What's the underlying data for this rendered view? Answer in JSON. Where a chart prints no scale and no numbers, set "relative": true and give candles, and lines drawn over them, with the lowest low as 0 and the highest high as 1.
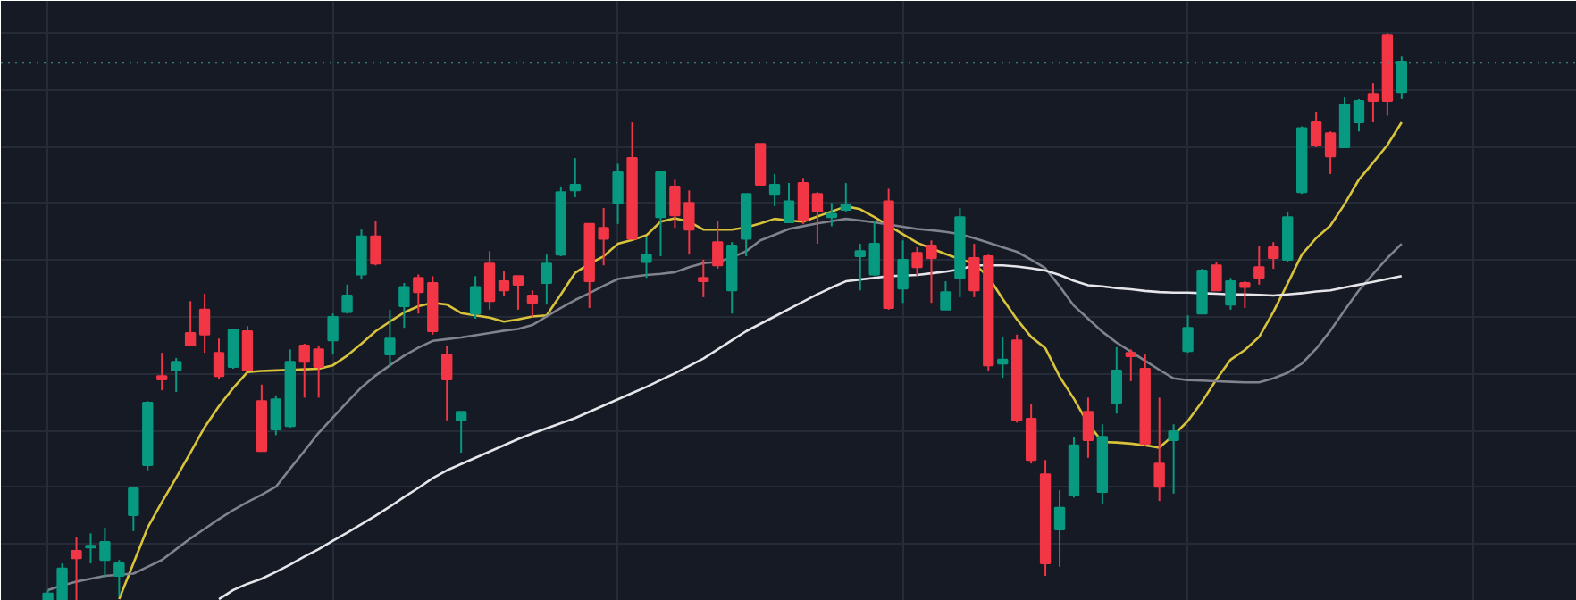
{
  "chart_data": {
    "type": "candlestick",
    "relative": true,
    "grid": true,
    "categories": [
      null,
      null,
      null,
      null,
      null,
      null,
      null,
      null,
      null,
      null,
      null,
      null,
      null,
      null,
      null,
      null,
      null,
      null,
      null,
      null,
      null,
      null,
      null,
      null,
      null,
      null,
      null,
      null,
      null,
      null,
      null,
      null,
      null,
      null,
      null,
      null,
      null,
      null,
      null,
      null,
      null,
      null,
      null,
      null,
      null,
      null,
      null,
      null,
      null,
      null,
      null,
      null,
      null,
      null,
      null,
      null,
      null,
      null,
      null,
      null,
      null,
      null,
      null,
      null,
      null,
      null,
      null,
      null,
      null,
      null,
      null,
      null,
      null,
      null,
      null,
      null,
      null,
      null,
      null,
      null,
      null,
      null,
      null,
      null,
      null,
      null,
      null,
      null,
      null,
      null,
      null,
      null,
      null,
      null,
      null,
      null
    ],
    "ohlc": [
      [
        0,
        0.019,
        0,
        0.013
      ],
      [
        0,
        0.066,
        0,
        0.057
      ],
      [
        0.088,
        0.113,
        0,
        0.075
      ],
      [
        0.094,
        0.119,
        0.066,
        0.097
      ],
      [
        0.072,
        0.129,
        0.041,
        0.104
      ],
      [
        0.044,
        0.072,
        0.009,
        0.066
      ],
      [
        0.151,
        0.201,
        0.123,
        0.198
      ],
      [
        0.239,
        0.352,
        0.23,
        0.349
      ],
      [
        0.396,
        0.437,
        0.371,
        0.39
      ],
      [
        0.406,
        0.428,
        0.368,
        0.421
      ],
      [
        0.472,
        0.528,
        0.45,
        0.45
      ],
      [
        0.513,
        0.541,
        0.437,
        0.469
      ],
      [
        0.437,
        0.462,
        0.39,
        0.396
      ],
      [
        0.412,
        0.478,
        0.409,
        0.478
      ],
      [
        0.475,
        0.484,
        0.406,
        0.406
      ],
      [
        0.352,
        0.381,
        0.264,
        0.264
      ],
      [
        0.302,
        0.362,
        0.292,
        0.355
      ],
      [
        0.308,
        0.443,
        0.305,
        0.421
      ],
      [
        0.45,
        0.453,
        0.358,
        0.421
      ],
      [
        0.443,
        0.45,
        0.358,
        0.412
      ],
      [
        0.459,
        0.506,
        0.434,
        0.5
      ],
      [
        0.509,
        0.557,
        0.506,
        0.538
      ],
      [
        0.575,
        0.654,
        0.566,
        0.642
      ],
      [
        0.642,
        0.67,
        0.591,
        0.594
      ],
      [
        0.434,
        0.513,
        0.412,
        0.462
      ],
      [
        0.519,
        0.56,
        0.481,
        0.553
      ],
      [
        0.569,
        0.575,
        0.506,
        0.544
      ],
      [
        0.56,
        0.572,
        0.469,
        0.475
      ],
      [
        0.434,
        0.45,
        0.318,
        0.39
      ],
      [
        0.318,
        0.333,
        0.261,
        0.333
      ],
      [
        0.506,
        0.572,
        0.497,
        0.553
      ],
      [
        0.594,
        0.616,
        0.513,
        0.528
      ],
      [
        0.563,
        0.582,
        0.538,
        0.547
      ],
      [
        0.572,
        0.572,
        0.513,
        0.557
      ],
      [
        0.538,
        0.547,
        0.5,
        0.525
      ],
      [
        0.56,
        0.61,
        0.522,
        0.594
      ],
      [
        0.61,
        0.73,
        0.607,
        0.72
      ],
      [
        0.723,
        0.78,
        0.711,
        0.733
      ],
      [
        0.664,
        0.664,
        0.516,
        0.563
      ],
      [
        0.657,
        0.692,
        0.591,
        0.638
      ],
      [
        0.701,
        0.77,
        0.664,
        0.755
      ],
      [
        0.78,
        0.843,
        0.638,
        0.638
      ],
      [
        0.597,
        0.642,
        0.569,
        0.61
      ],
      [
        0.676,
        0.755,
        0.607,
        0.755
      ],
      [
        0.73,
        0.742,
        0.657,
        0.679
      ],
      [
        0.701,
        0.723,
        0.61,
        0.654
      ],
      [
        0.569,
        0.601,
        0.535,
        0.563
      ],
      [
        0.632,
        0.67,
        0.585,
        0.591
      ],
      [
        0.547,
        0.632,
        0.506,
        0.626
      ],
      [
        0.638,
        0.717,
        0.607,
        0.717
      ],
      [
        0.805,
        0.805,
        0.733,
        0.733
      ],
      [
        0.717,
        0.752,
        0.695,
        0.733
      ],
      [
        0.667,
        0.736,
        0.667,
        0.704
      ],
      [
        0.736,
        0.745,
        0.664,
        0.67
      ],
      [
        0.717,
        0.72,
        0.629,
        0.686
      ],
      [
        0.676,
        0.701,
        0.66,
        0.682
      ],
      [
        0.689,
        0.736,
        0.686,
        0.698
      ],
      [
        0.607,
        0.629,
        0.547,
        0.616
      ],
      [
        0.575,
        0.67,
        0.572,
        0.629
      ],
      [
        0.704,
        0.726,
        0.513,
        0.516
      ],
      [
        0.55,
        0.635,
        0.525,
        0.601
      ],
      [
        0.613,
        0.623,
        0.572,
        0.588
      ],
      [
        0.626,
        0.635,
        0.525,
        0.604
      ],
      [
        0.513,
        0.563,
        0.513,
        0.544
      ],
      [
        0.569,
        0.692,
        0.535,
        0.676
      ],
      [
        0.604,
        0.629,
        0.535,
        0.547
      ],
      [
        0.607,
        0.61,
        0.406,
        0.415
      ],
      [
        0.418,
        0.465,
        0.393,
        0.425
      ],
      [
        0.459,
        0.469,
        0.314,
        0.318
      ],
      [
        0.321,
        0.346,
        0.242,
        0.248
      ],
      [
        0.223,
        0.248,
        0.044,
        0.066
      ],
      [
        0.126,
        0.195,
        0.06,
        0.164
      ],
      [
        0.186,
        0.289,
        0.182,
        0.274
      ],
      [
        0.333,
        0.358,
        0.252,
        0.283
      ],
      [
        0.192,
        0.311,
        0.17,
        0.289
      ],
      [
        0.349,
        0.447,
        0.33,
        0.406
      ],
      [
        0.437,
        0.443,
        0.387,
        0.431
      ],
      [
        0.409,
        0.434,
        0.274,
        0.277
      ],
      [
        0.242,
        0.358,
        0.176,
        0.201
      ],
      [
        0.283,
        0.311,
        0.189,
        0.299
      ],
      [
        0.44,
        0.503,
        0.437,
        0.481
      ],
      [
        0.506,
        0.585,
        0.506,
        0.582
      ],
      [
        0.591,
        0.597,
        0.547,
        0.547
      ],
      [
        0.522,
        0.569,
        0.513,
        0.563
      ],
      [
        0.56,
        0.563,
        0.516,
        0.553
      ],
      [
        0.588,
        0.626,
        0.557,
        0.569
      ],
      [
        0.623,
        0.632,
        0.585,
        0.604
      ],
      [
        0.601,
        0.686,
        0.597,
        0.676
      ],
      [
        0.72,
        0.836,
        0.717,
        0.833
      ],
      [
        0.843,
        0.862,
        0.799,
        0.802
      ],
      [
        0.824,
        0.827,
        0.752,
        0.783
      ],
      [
        0.799,
        0.887,
        0.799,
        0.874
      ],
      [
        0.843,
        0.884,
        0.827,
        0.881
      ],
      [
        0.893,
        0.912,
        0.843,
        0.881
      ],
      [
        0.997,
        1,
        0.855,
        0.881
      ],
      [
        0.896,
        0.959,
        0.884,
        0.95
      ]
    ],
    "colors": [
      "#089981",
      "#089981",
      "#f23645",
      "#089981",
      "#089981",
      "#089981",
      "#089981",
      "#089981",
      "#f23645",
      "#089981",
      "#f23645",
      "#f23645",
      "#f23645",
      "#089981",
      "#f23645",
      "#f23645",
      "#089981",
      "#089981",
      "#f23645",
      "#f23645",
      "#089981",
      "#089981",
      "#089981",
      "#f23645",
      "#089981",
      "#089981",
      "#f23645",
      "#f23645",
      "#f23645",
      "#089981",
      "#089981",
      "#f23645",
      "#f23645",
      "#f23645",
      "#f23645",
      "#089981",
      "#089981",
      "#089981",
      "#f23645",
      "#f23645",
      "#089981",
      "#f23645",
      "#089981",
      "#089981",
      "#f23645",
      "#f23645",
      "#f23645",
      "#f23645",
      "#089981",
      "#089981",
      "#f23645",
      "#089981",
      "#089981",
      "#f23645",
      "#f23645",
      "#089981",
      "#089981",
      "#089981",
      "#089981",
      "#f23645",
      "#089981",
      "#f23645",
      "#f23645",
      "#089981",
      "#089981",
      "#f23645",
      "#f23645",
      "#089981",
      "#f23645",
      "#f23645",
      "#f23645",
      "#089981",
      "#089981",
      "#f23645",
      "#089981",
      "#089981",
      "#f23645",
      "#f23645",
      "#f23645",
      "#089981",
      "#089981",
      "#089981",
      "#f23645",
      "#089981",
      "#f23645",
      "#f23645",
      "#f23645",
      "#089981",
      "#089981",
      "#f23645",
      "#f23645",
      "#089981",
      "#089981",
      "#f23645",
      "#f23645",
      "#089981"
    ],
    "series": [
      {
        "type": "line",
        "color": "#d9c33b",
        "values": [
          null,
          null,
          null,
          null,
          null,
          0.003,
          0.066,
          0.129,
          0.174,
          0.217,
          0.261,
          0.306,
          0.343,
          0.375,
          0.403,
          0.405,
          0.406,
          0.407,
          0.408,
          0.409,
          0.415,
          0.432,
          0.453,
          0.475,
          0.492,
          0.508,
          0.519,
          0.525,
          0.522,
          0.507,
          0.503,
          0.499,
          0.492,
          0.496,
          0.501,
          0.503,
          0.54,
          0.578,
          0.594,
          0.607,
          0.629,
          0.636,
          0.644,
          0.668,
          0.674,
          0.668,
          0.654,
          0.654,
          0.654,
          0.658,
          0.665,
          0.673,
          0.67,
          0.668,
          0.677,
          0.686,
          0.695,
          0.69,
          0.676,
          0.661,
          0.646,
          0.631,
          0.621,
          0.611,
          0.602,
          0.594,
          0.571,
          0.532,
          0.496,
          0.465,
          0.445,
          0.395,
          0.356,
          0.312,
          0.28,
          0.279,
          0.277,
          0.274,
          0.27,
          0.292,
          0.317,
          0.351,
          0.39,
          0.425,
          0.442,
          0.465,
          0.509,
          0.559,
          0.61,
          0.639,
          0.661,
          0.699,
          0.742,
          0.772,
          0.803,
          0.843
        ]
      },
      {
        "type": "line",
        "color": "#80838c",
        "values": [
          0.019,
          0.027,
          0.034,
          0.039,
          0.044,
          0.046,
          0.048,
          0.06,
          0.072,
          0.091,
          0.11,
          0.127,
          0.144,
          0.16,
          0.174,
          0.187,
          0.201,
          0.233,
          0.264,
          0.296,
          0.323,
          0.35,
          0.376,
          0.397,
          0.415,
          0.432,
          0.446,
          0.458,
          0.461,
          0.464,
          0.468,
          0.472,
          0.476,
          0.479,
          0.486,
          0.501,
          0.516,
          0.53,
          0.542,
          0.555,
          0.567,
          0.571,
          0.574,
          0.576,
          0.579,
          0.588,
          0.595,
          0.597,
          0.605,
          0.616,
          0.635,
          0.645,
          0.655,
          0.66,
          0.665,
          0.669,
          0.673,
          0.67,
          0.667,
          0.663,
          0.659,
          0.655,
          0.653,
          0.65,
          0.646,
          0.639,
          0.631,
          0.623,
          0.615,
          0.601,
          0.586,
          0.554,
          0.52,
          0.497,
          0.474,
          0.455,
          0.439,
          0.423,
          0.407,
          0.392,
          0.389,
          0.388,
          0.387,
          0.386,
          0.385,
          0.385,
          0.392,
          0.402,
          0.418,
          0.444,
          0.476,
          0.512,
          0.547,
          0.576,
          0.604,
          0.629
        ]
      },
      {
        "type": "line",
        "color": "#e6e6ea",
        "values": [
          null,
          null,
          null,
          null,
          null,
          null,
          null,
          null,
          null,
          null,
          null,
          null,
          0.003,
          0.019,
          0.03,
          0.039,
          0.051,
          0.064,
          0.078,
          0.091,
          0.106,
          0.12,
          0.135,
          0.15,
          0.166,
          0.183,
          0.199,
          0.216,
          0.23,
          0.241,
          0.252,
          0.263,
          0.274,
          0.285,
          0.295,
          0.304,
          0.313,
          0.322,
          0.333,
          0.344,
          0.355,
          0.366,
          0.377,
          0.389,
          0.401,
          0.414,
          0.427,
          0.443,
          0.459,
          0.475,
          0.488,
          0.501,
          0.514,
          0.527,
          0.54,
          0.552,
          0.563,
          0.566,
          0.569,
          0.572,
          0.573,
          0.574,
          0.577,
          0.58,
          0.584,
          0.591,
          0.591,
          0.591,
          0.589,
          0.586,
          0.582,
          0.574,
          0.564,
          0.556,
          0.554,
          0.551,
          0.549,
          0.546,
          0.544,
          0.543,
          0.543,
          0.542,
          0.541,
          0.54,
          0.54,
          0.539,
          0.538,
          0.54,
          0.542,
          0.545,
          0.547,
          0.552,
          0.557,
          0.562,
          0.567,
          0.572
        ]
      }
    ],
    "ref_lines": [
      {
        "axis": "y",
        "value": 0.948,
        "color": "#3f9c94",
        "line_style": "dotted"
      }
    ]
  }
}
